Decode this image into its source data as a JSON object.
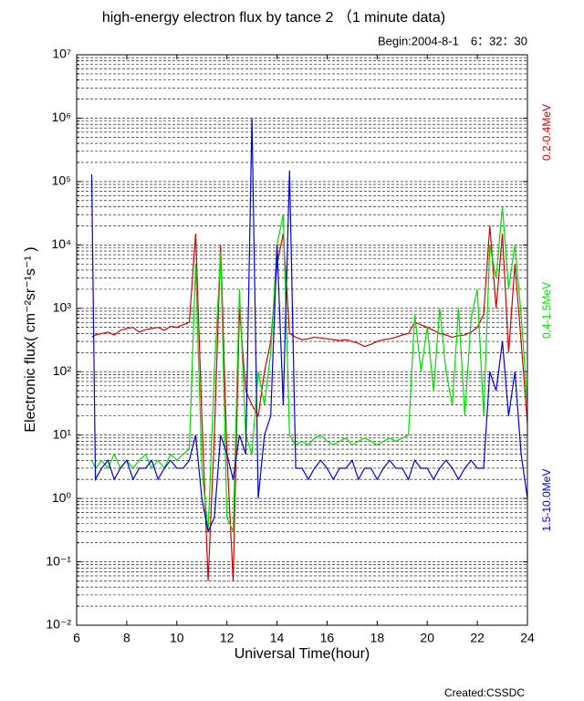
{
  "chart_data": {
    "type": "line",
    "title": "high-energy electron flux by tance 2 （1 minute data)",
    "subtitle": "Begin:2004-8-1　6：32：30",
    "xlabel": "Universal Time(hour)",
    "ylabel": "Electronic flux( cm⁻²sr⁻¹s⁻¹ )",
    "footer": "Created:CSSDC",
    "log_y": true,
    "grid": true,
    "legend": "right",
    "xlim": [
      6,
      24
    ],
    "xticks": [
      6,
      8,
      10,
      12,
      14,
      16,
      18,
      20,
      22,
      24
    ],
    "ylim": [
      0.01,
      10000000
    ],
    "yticks": [
      {
        "value": 0.01,
        "label": "10⁻²"
      },
      {
        "value": 0.1,
        "label": "10⁻¹"
      },
      {
        "value": 1,
        "label": "10⁰"
      },
      {
        "value": 10,
        "label": "10¹"
      },
      {
        "value": 100,
        "label": "10²"
      },
      {
        "value": 1000,
        "label": "10³"
      },
      {
        "value": 10000,
        "label": "10⁴"
      },
      {
        "value": 100000,
        "label": "10⁵"
      },
      {
        "value": 1000000,
        "label": "10⁶"
      },
      {
        "value": 10000000,
        "label": "10⁷"
      }
    ],
    "x": [
      6.6,
      6.75,
      7,
      7.25,
      7.5,
      7.75,
      8,
      8.25,
      8.5,
      8.75,
      9,
      9.25,
      9.5,
      9.75,
      10,
      10.25,
      10.5,
      10.75,
      11,
      11.25,
      11.5,
      11.75,
      12,
      12.25,
      12.5,
      12.75,
      13,
      13.25,
      13.5,
      13.75,
      14,
      14.25,
      14.5,
      14.75,
      15,
      15.25,
      15.5,
      15.75,
      16,
      16.25,
      16.5,
      16.75,
      17,
      17.25,
      17.5,
      17.75,
      18,
      18.25,
      18.5,
      18.75,
      19,
      19.25,
      19.5,
      19.75,
      20,
      20.25,
      20.5,
      20.75,
      21,
      21.25,
      21.5,
      21.75,
      22,
      22.25,
      22.5,
      22.75,
      23,
      23.25,
      23.5,
      23.75,
      24
    ],
    "series": [
      {
        "name": "0.2-0.4MeV",
        "color": "#d40000",
        "values": [
          350,
          380,
          400,
          420,
          380,
          450,
          480,
          500,
          420,
          460,
          480,
          500,
          450,
          520,
          500,
          550,
          600,
          15000,
          20,
          0.05,
          10,
          10000,
          5,
          0.05,
          1000,
          50,
          30,
          20,
          100,
          300,
          5000,
          15000,
          400,
          350,
          320,
          330,
          350,
          340,
          330,
          320,
          310,
          320,
          300,
          280,
          250,
          270,
          300,
          320,
          330,
          350,
          380,
          400,
          600,
          550,
          500,
          450,
          400,
          380,
          350,
          370,
          380,
          420,
          500,
          800,
          20000,
          1000,
          15000,
          200,
          5000,
          300,
          15
        ]
      },
      {
        "name": "0.4-1.5MeV",
        "color": "#00dd00",
        "values": [
          4,
          3,
          4,
          3,
          5,
          3,
          4,
          3,
          4,
          5,
          3,
          4,
          3,
          5,
          4,
          5,
          6,
          5000,
          3,
          0.3,
          100,
          8000,
          0.5,
          0.3,
          2000,
          10,
          5,
          100,
          30,
          200,
          10000,
          30000,
          10,
          7,
          8,
          7,
          9,
          10,
          8,
          7,
          8,
          9,
          7,
          8,
          9,
          8,
          7,
          8,
          9,
          8,
          9,
          10,
          800,
          100,
          500,
          50,
          1000,
          100,
          30,
          1000,
          20,
          700,
          2000,
          20,
          10000,
          3000,
          40000,
          2000,
          10000,
          800,
          30
        ]
      },
      {
        "name": "1.5-10.0MeV",
        "color": "#0000dd",
        "values": [
          130000,
          2,
          3,
          4,
          2,
          3,
          4,
          2,
          3,
          3,
          4,
          2,
          3,
          4,
          3,
          3,
          4,
          10,
          1,
          0.3,
          0.5,
          10,
          5,
          2,
          10,
          5,
          1000000,
          1,
          10,
          20,
          10000,
          30,
          150000,
          3,
          3,
          2,
          3,
          4,
          3,
          2,
          3,
          3,
          4,
          2,
          3,
          3,
          2,
          3,
          4,
          3,
          3,
          2,
          4,
          3,
          3,
          2,
          3,
          4,
          3,
          2,
          3,
          4,
          3,
          3,
          100,
          50,
          300,
          20,
          100,
          5,
          1
        ]
      }
    ]
  }
}
